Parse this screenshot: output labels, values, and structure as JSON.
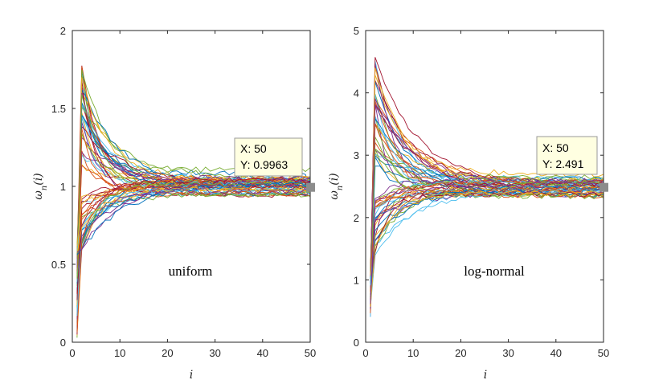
{
  "chart_data": [
    {
      "type": "line",
      "panel": "left",
      "annotation": "uniform",
      "xlabel": "i",
      "ylabel": "ω_n(i)",
      "ylabel_base": "ω",
      "ylabel_sub": "n",
      "ylabel_arg": "(i)",
      "xlim": [
        0,
        50
      ],
      "ylim": [
        0,
        2
      ],
      "xticks": [
        "0",
        "10",
        "20",
        "30",
        "40",
        "50"
      ],
      "yticks": [
        "0",
        "0.5",
        "1",
        "1.5",
        "2"
      ],
      "series_count": 60,
      "converges_to": 1.0,
      "peak_max": 1.82,
      "start_range": [
        0.02,
        0.62
      ],
      "datatip": {
        "x": 50,
        "y": 0.9963,
        "x_label": "X: 50",
        "y_label": "Y: 0.9963"
      }
    },
    {
      "type": "line",
      "panel": "right",
      "annotation": "log-normal",
      "xlabel": "i",
      "ylabel": "ω_n(i)",
      "ylabel_base": "ω",
      "ylabel_sub": "n",
      "ylabel_arg": "(i)",
      "xlim": [
        0,
        50
      ],
      "ylim": [
        0,
        5
      ],
      "xticks": [
        "0",
        "10",
        "20",
        "30",
        "40",
        "50"
      ],
      "yticks": [
        "0",
        "1",
        "2",
        "3",
        "4",
        "5"
      ],
      "series_count": 60,
      "converges_to": 2.49,
      "peak_max": 4.6,
      "start_range": [
        0.4,
        1.2
      ],
      "datatip": {
        "x": 50,
        "y": 2.491,
        "x_label": "X: 50",
        "y_label": "Y: 2.491"
      }
    }
  ],
  "colors": [
    "#0072bd",
    "#d95319",
    "#edb120",
    "#7e2f8e",
    "#77ac30",
    "#4dbeee",
    "#a2142f"
  ],
  "datatip_bg": "#ffffe1",
  "datatip_marker": "#8c8c8c"
}
